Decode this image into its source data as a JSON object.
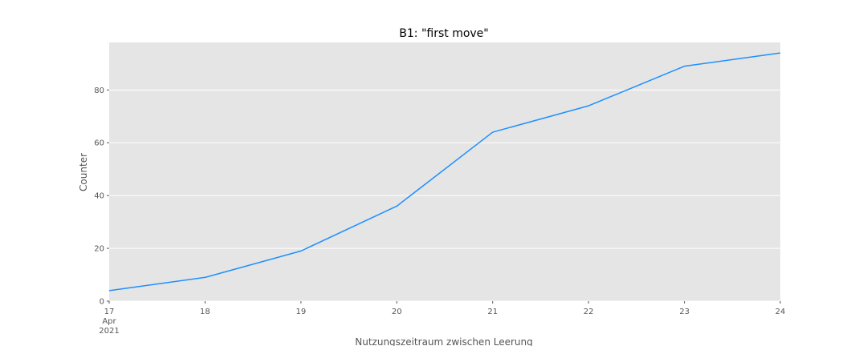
{
  "chart_data": {
    "type": "line",
    "title": "B1: \"first move\"",
    "xlabel": "Nutzungszeitraum zwischen Leerung",
    "ylabel": "Counter",
    "x": [
      "2021-04-17",
      "2021-04-18",
      "2021-04-19",
      "2021-04-20",
      "2021-04-21",
      "2021-04-22",
      "2021-04-23",
      "2021-04-24"
    ],
    "x_tick_labels": [
      "17",
      "18",
      "19",
      "20",
      "21",
      "22",
      "23",
      "24"
    ],
    "x_tick_sublabels": [
      "Apr",
      "2021"
    ],
    "series": [
      {
        "values": [
          4,
          9,
          19,
          36,
          64,
          74,
          89,
          94
        ],
        "color": "#1e90ff"
      }
    ],
    "y_ticks": [
      0,
      20,
      40,
      60,
      80
    ],
    "ylim": [
      0,
      98
    ],
    "grid": true,
    "background": "#e5e5e5",
    "grid_color": "#ffffff"
  }
}
